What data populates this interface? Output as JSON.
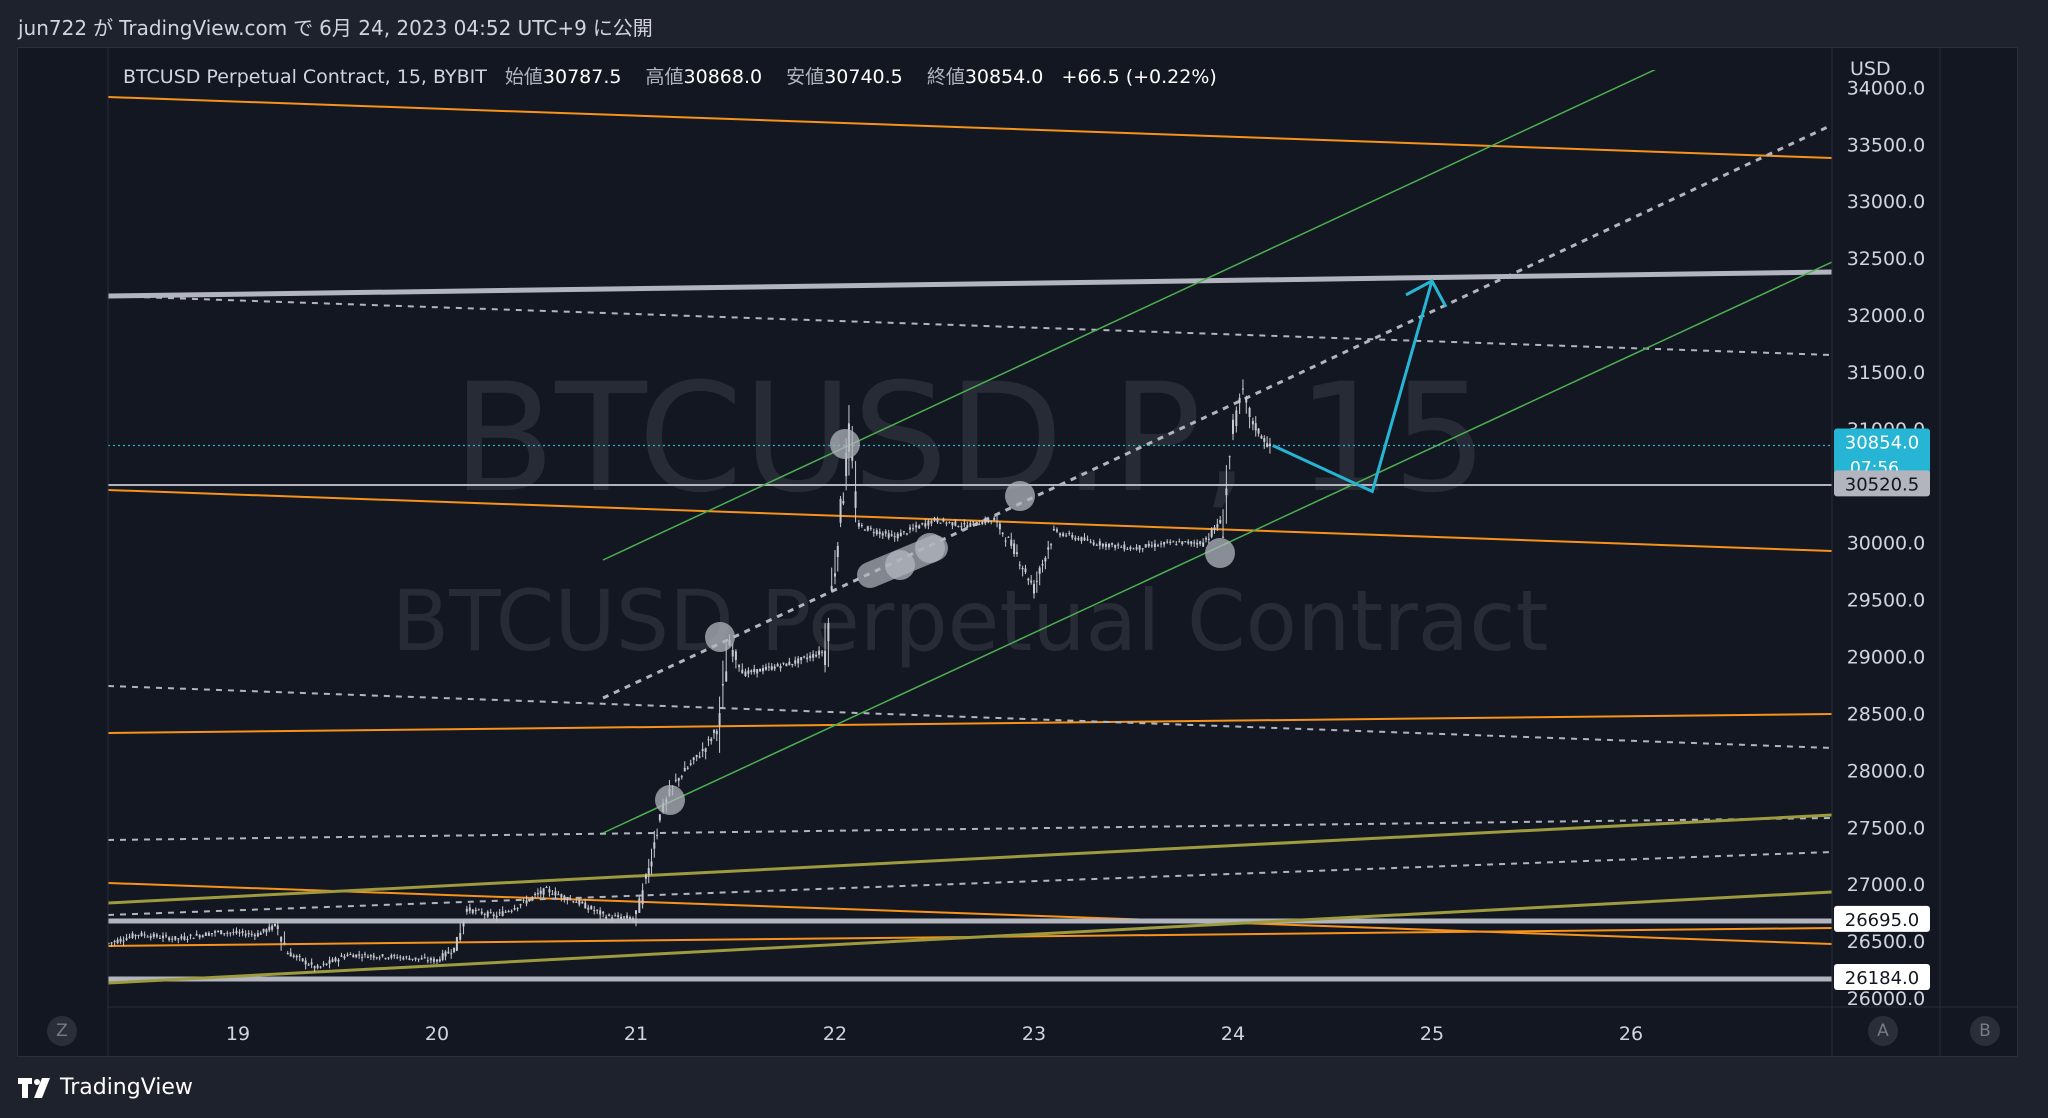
{
  "header": {
    "author": "jun722",
    "ga": "が",
    "site": "TradingView.com",
    "de": "で",
    "date": "6月 24, 2023 04:52 UTC+9",
    "published": "に公開"
  },
  "legend": {
    "symbol": "BTCUSD Perpetual Contract, 15, BYBIT",
    "open_label": "始値",
    "open": "30787.5",
    "high_label": "高値",
    "high": "30868.0",
    "low_label": "安値",
    "low": "30740.5",
    "close_label": "終値",
    "close": "30854.0",
    "change": "+66.5 (+0.22%)"
  },
  "watermark": {
    "symbol": "BTCUSD.P, 15",
    "description": "BTCUSD Perpetual Contract"
  },
  "axis": {
    "currency": "USD",
    "left_button": "Z",
    "right_button_a": "A",
    "right_button_b": "B"
  },
  "brand": {
    "name": "TradingView"
  },
  "colors": {
    "background": "#131722",
    "candle": "#c8cad0",
    "orange": "#f7931a",
    "green": "#4caf50",
    "olive": "#9e9a3e",
    "cyan": "#26b5d4",
    "gray": "#b2b5be"
  },
  "chart_data": {
    "type": "candlestick",
    "x_ticks": [
      "19",
      "20",
      "21",
      "22",
      "23",
      "24",
      "25",
      "26"
    ],
    "y_ticks": [
      "34000.0",
      "33500.0",
      "33000.0",
      "32500.0",
      "32000.0",
      "31500.0",
      "31000.0",
      "30000.0",
      "29500.0",
      "29000.0",
      "28500.0",
      "28000.0",
      "27500.0",
      "27000.0",
      "26500.0",
      "26000.0"
    ],
    "ylim": [
      26000,
      34000
    ],
    "price_labels": [
      {
        "value": "30854.0",
        "sub": "07:56",
        "color": "#26b5d4"
      },
      {
        "value": "30520.5",
        "color": "#b2b5be"
      },
      {
        "value": "26695.0",
        "color": "#ffffff"
      },
      {
        "value": "26184.0",
        "color": "#ffffff"
      }
    ],
    "price_path": [
      [
        18.35,
        26480
      ],
      [
        18.5,
        26560
      ],
      [
        18.7,
        26520
      ],
      [
        18.9,
        26580
      ],
      [
        19.1,
        26560
      ],
      [
        19.2,
        26640
      ],
      [
        19.25,
        26400
      ],
      [
        19.4,
        26260
      ],
      [
        19.55,
        26380
      ],
      [
        19.8,
        26360
      ],
      [
        20.0,
        26330
      ],
      [
        20.1,
        26450
      ],
      [
        20.15,
        26780
      ],
      [
        20.3,
        26720
      ],
      [
        20.45,
        26850
      ],
      [
        20.55,
        26950
      ],
      [
        20.7,
        26850
      ],
      [
        20.85,
        26720
      ],
      [
        21.0,
        26700
      ],
      [
        21.05,
        27000
      ],
      [
        21.12,
        27600
      ],
      [
        21.2,
        27900
      ],
      [
        21.35,
        28200
      ],
      [
        21.42,
        28400
      ],
      [
        21.47,
        29100
      ],
      [
        21.55,
        28850
      ],
      [
        21.8,
        28950
      ],
      [
        21.95,
        29050
      ],
      [
        22.0,
        29800
      ],
      [
        22.07,
        30900
      ],
      [
        22.12,
        30150
      ],
      [
        22.3,
        30050
      ],
      [
        22.5,
        30200
      ],
      [
        22.65,
        30150
      ],
      [
        22.8,
        30200
      ],
      [
        22.9,
        29950
      ],
      [
        23.0,
        29600
      ],
      [
        23.1,
        30100
      ],
      [
        23.3,
        30000
      ],
      [
        23.5,
        29950
      ],
      [
        23.7,
        30000
      ],
      [
        23.85,
        30000
      ],
      [
        23.95,
        30200
      ],
      [
        24.0,
        31000
      ],
      [
        24.05,
        31300
      ],
      [
        24.1,
        31050
      ],
      [
        24.2,
        30800
      ]
    ],
    "projection": [
      [
        24.2,
        30854
      ],
      [
        24.7,
        30450
      ],
      [
        25.0,
        32300
      ]
    ]
  }
}
